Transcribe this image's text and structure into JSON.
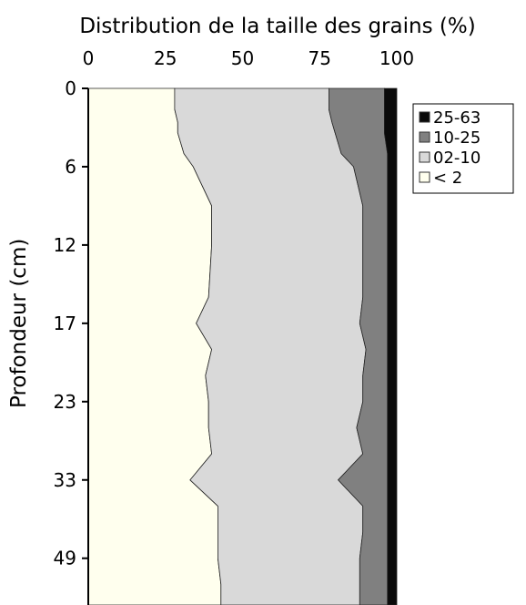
{
  "chart_data": {
    "type": "area",
    "orientation": "horizontal-stacked-percent",
    "title": "Distribution de la taille des grains (%)",
    "xlabel": "",
    "ylabel": "Profondeur (cm)",
    "xlim": [
      0,
      100
    ],
    "x_ticks": [
      "0",
      "25",
      "50",
      "75",
      "100"
    ],
    "y_ticks": [
      "0",
      "6",
      "12",
      "17",
      "23",
      "33",
      "49"
    ],
    "y_tick_rows": [
      0,
      3,
      6,
      9,
      12,
      15,
      18
    ],
    "depth_rows": [
      0,
      0.8,
      1.3,
      1.7,
      2.5,
      3,
      4.5,
      6,
      8,
      9,
      10,
      11,
      12,
      13,
      14,
      15,
      16,
      17,
      18,
      19
    ],
    "legend_placement": "top-right",
    "series": [
      {
        "name": "< 2",
        "color": "#ffffee",
        "values": [
          28,
          28,
          29,
          29,
          31,
          34,
          40,
          40,
          39,
          35,
          40,
          38,
          39,
          39,
          40,
          33,
          42,
          42,
          42,
          43
        ]
      },
      {
        "name": "02-10",
        "color": "#d9d9d9",
        "values": [
          50,
          50,
          50,
          51,
          51,
          52,
          49,
          49,
          50,
          53,
          50,
          51,
          50,
          48,
          49,
          48,
          47,
          47,
          46,
          45
        ]
      },
      {
        "name": "10-25",
        "color": "#808080",
        "values": [
          18,
          18,
          17,
          16,
          15,
          11,
          8,
          8,
          8,
          9,
          7,
          8,
          8,
          10,
          8,
          16,
          8,
          8,
          9,
          9
        ]
      },
      {
        "name": "25-63",
        "color": "#0a0a0a",
        "values": [
          4,
          4,
          4,
          4,
          3,
          3,
          3,
          3,
          3,
          3,
          3,
          3,
          3,
          3,
          3,
          3,
          3,
          3,
          3,
          3
        ]
      }
    ]
  }
}
